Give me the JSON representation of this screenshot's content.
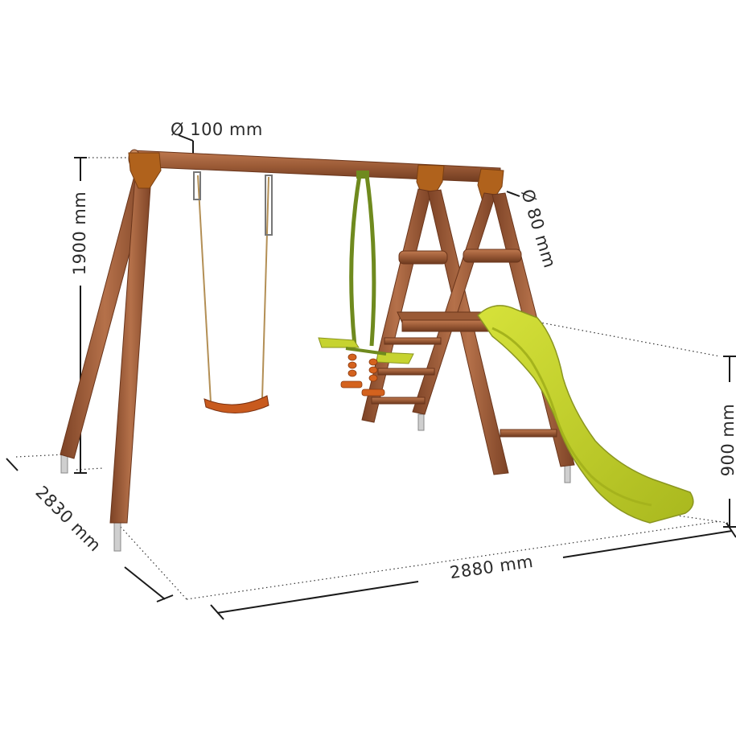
{
  "dimensions": {
    "beam_diameter": "Ø 100 mm",
    "post_diameter": "Ø 80 mm",
    "height": "1900 mm",
    "platform_height": "900 mm",
    "depth": "2830 mm",
    "width": "2880 mm"
  },
  "colors": {
    "wood": "#9a5a36",
    "wood_dark": "#7a3f22",
    "bracket": "#b0621c",
    "slide": "#c2cf28",
    "swing_seat": "#c85a1e",
    "glider_frame": "#6f8a1e",
    "glider_seat": "#c6d330",
    "glider_handle": "#d4621e",
    "dimension_line": "#1a1a1a"
  }
}
